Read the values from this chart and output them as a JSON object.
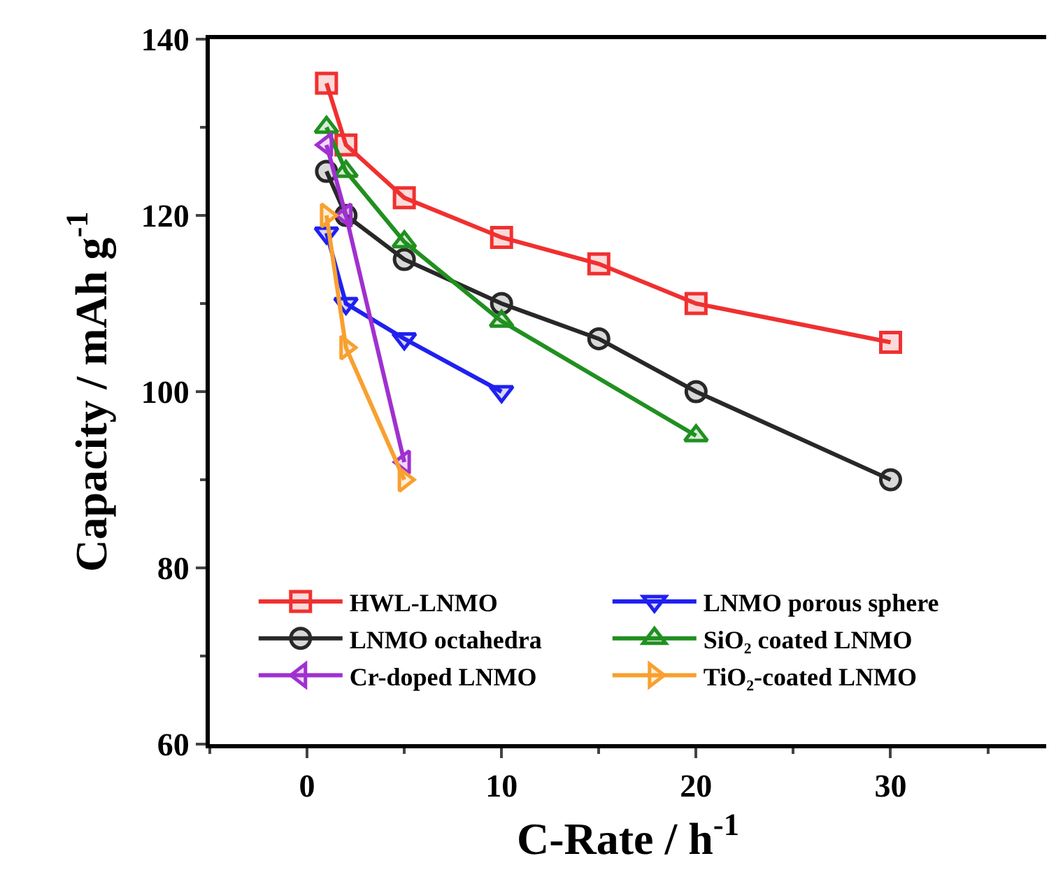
{
  "chart_data": {
    "type": "line",
    "xlabel": "C-Rate / h$^{-1}$",
    "ylabel": "Capacity / mAh g$^{-1}$",
    "xlim": [
      -5,
      38
    ],
    "xticks": [
      0,
      10,
      20,
      30
    ],
    "ylim": [
      60,
      140
    ],
    "yticks": [
      60,
      80,
      100,
      120,
      140
    ],
    "legend": "bottom left",
    "line_style": "solid",
    "series": [
      {
        "name": "HWL-LNMO",
        "color": "#f03030",
        "marker": "square",
        "x": [
          1,
          2,
          5,
          10,
          15,
          20,
          30
        ],
        "values": [
          135,
          128,
          122,
          117.5,
          114.5,
          110,
          105.6
        ]
      },
      {
        "name": "LNMO porous sphere",
        "color": "#2020f0",
        "marker": "triangle-down",
        "x": [
          1,
          2,
          5,
          10
        ],
        "values": [
          118,
          110,
          106,
          100
        ]
      },
      {
        "name": "LNMO octahedra",
        "color": "#282828",
        "marker": "circle",
        "x": [
          1,
          2,
          5,
          10,
          15,
          20,
          30
        ],
        "values": [
          125,
          120,
          115,
          110,
          106,
          100,
          90
        ]
      },
      {
        "name": "SiO₂ coated LNMO",
        "color": "#209020",
        "marker": "triangle-up",
        "x": [
          1,
          2,
          5,
          10,
          20
        ],
        "values": [
          130,
          125,
          117,
          108,
          95
        ]
      },
      {
        "name": "Cr-doped LNMO",
        "color": "#a030d0",
        "marker": "triangle-left",
        "x": [
          1,
          2,
          5
        ],
        "values": [
          128,
          120,
          92
        ]
      },
      {
        "name": "TiO₂-coated LNMO",
        "color": "#f8a030",
        "marker": "triangle-right",
        "x": [
          1,
          2,
          5
        ],
        "values": [
          120,
          105,
          90
        ]
      }
    ]
  }
}
